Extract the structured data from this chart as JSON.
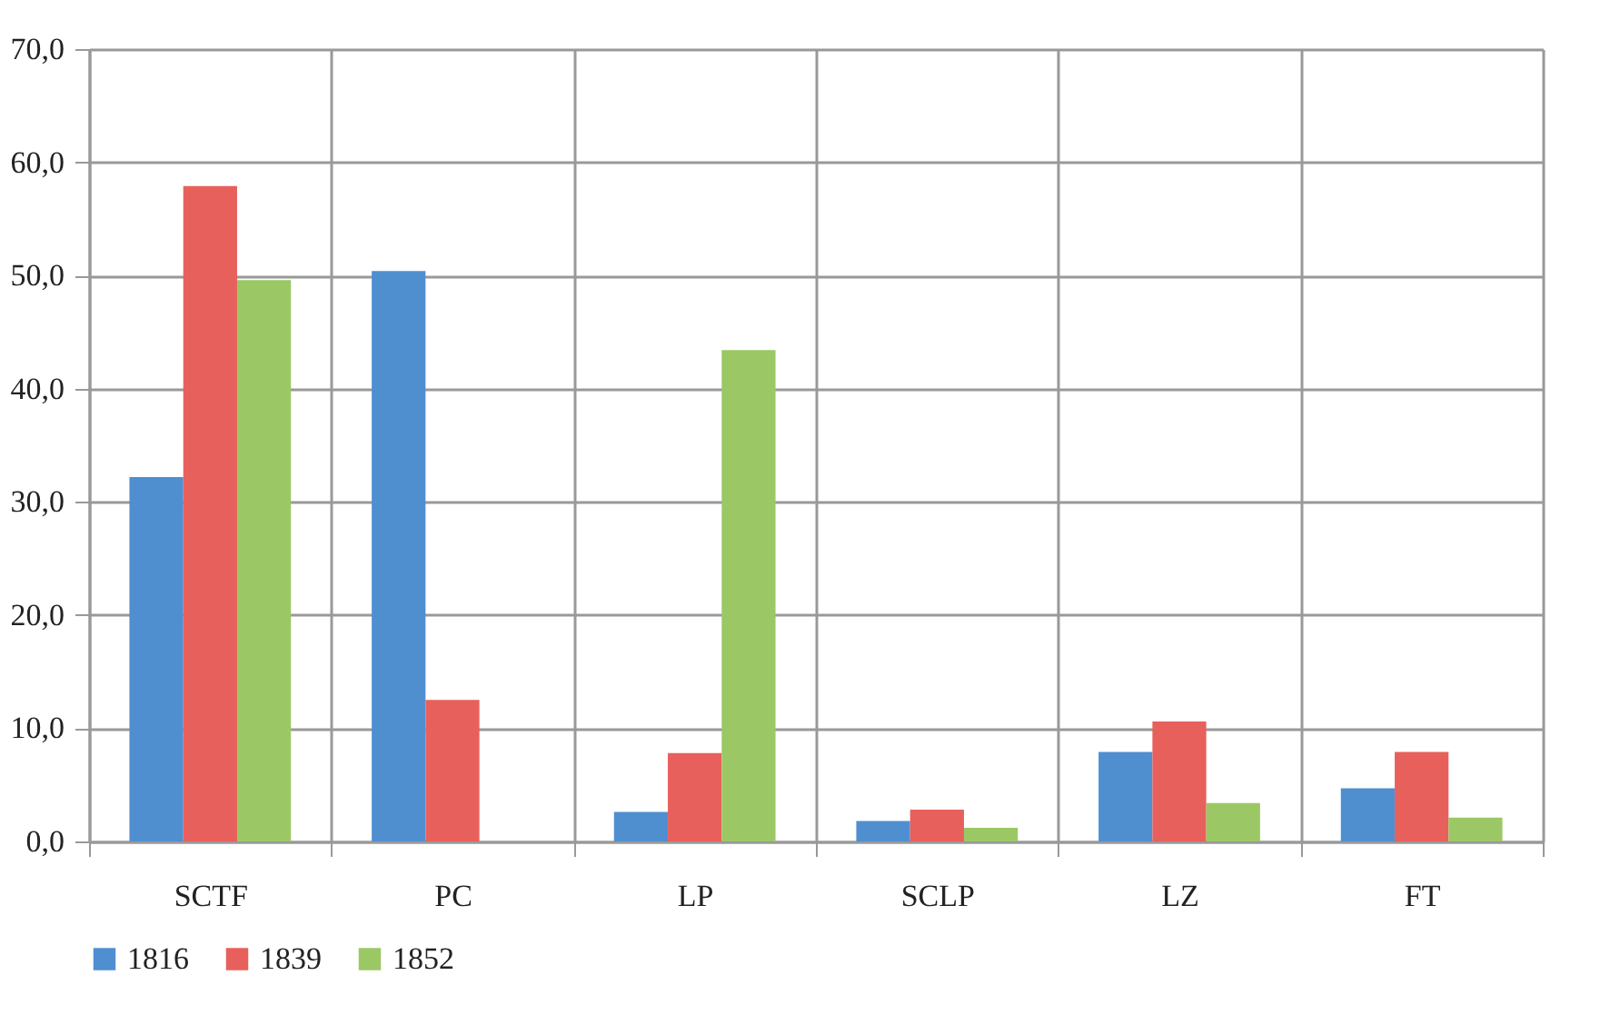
{
  "chart_data": {
    "type": "bar",
    "categories": [
      "SCTF",
      "PC",
      "LP",
      "SCLP",
      "LZ",
      "FT"
    ],
    "series": [
      {
        "name": "1816",
        "color": "#4f8fd0",
        "values": [
          32.2,
          50.4,
          2.6,
          1.8,
          7.9,
          4.7
        ]
      },
      {
        "name": "1839",
        "color": "#e8605c",
        "values": [
          57.9,
          12.5,
          7.8,
          2.8,
          10.6,
          7.9
        ]
      },
      {
        "name": "1852",
        "color": "#9bc865",
        "values": [
          49.6,
          null,
          43.4,
          1.2,
          3.4,
          2.1
        ]
      }
    ],
    "ylim": [
      0,
      70
    ],
    "yticks": [
      {
        "value": 0,
        "label": "0,0"
      },
      {
        "value": 10,
        "label": "10,0"
      },
      {
        "value": 20,
        "label": "20,0"
      },
      {
        "value": 30,
        "label": "30,0"
      },
      {
        "value": 40,
        "label": "40,0"
      },
      {
        "value": 50,
        "label": "50,0"
      },
      {
        "value": 60,
        "label": "60,0"
      },
      {
        "value": 70,
        "label": "70,0"
      }
    ],
    "grid": true,
    "legend": "bottom"
  }
}
